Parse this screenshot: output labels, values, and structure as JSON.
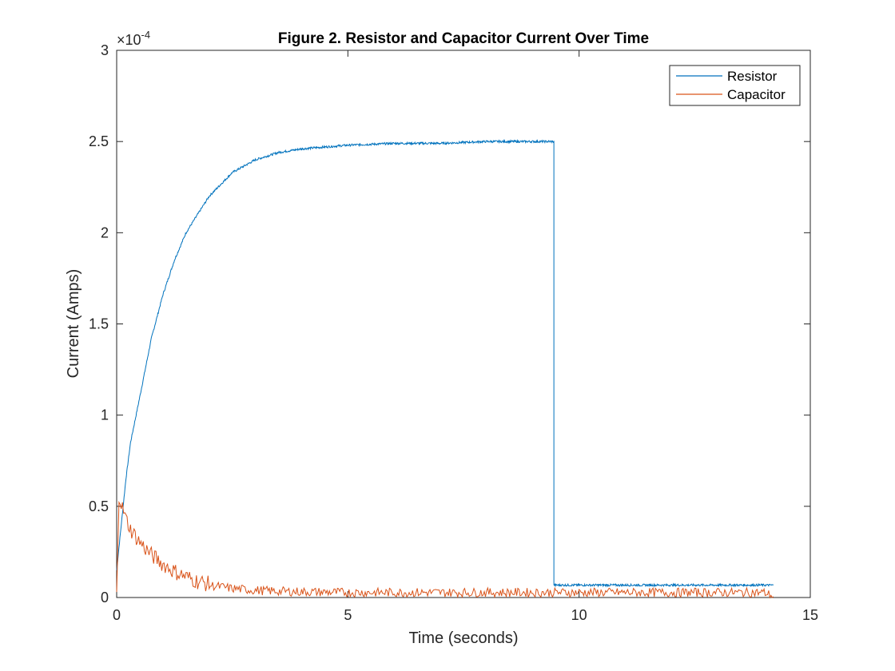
{
  "chart_data": {
    "type": "line",
    "title": "Figure 2. Resistor and Capacitor Current Over Time",
    "xlabel": "Time (seconds)",
    "ylabel": "Current (Amps)",
    "xlim": [
      0,
      15
    ],
    "ylim": [
      0,
      0.0003
    ],
    "x_ticks": [
      "0",
      "5",
      "10",
      "15"
    ],
    "y_ticks": [
      "0",
      "0.5",
      "1",
      "1.5",
      "2",
      "2.5",
      "3"
    ],
    "y_exponent_base": "×10",
    "y_exponent_power": "-4",
    "grid": false,
    "legend_position": "top-right",
    "series": [
      {
        "name": "Resistor",
        "color": "#0072BD",
        "x": [
          0,
          0.1,
          0.2,
          0.3,
          0.5,
          0.75,
          1.0,
          1.25,
          1.5,
          2.0,
          2.5,
          3.0,
          3.5,
          4.0,
          4.5,
          5.0,
          6.0,
          7.0,
          8.0,
          9.0,
          9.45,
          9.46,
          10.0,
          11.0,
          12.0,
          13.0,
          14.0,
          14.2
        ],
        "values": [
          1.5e-05,
          4e-05,
          6.5e-05,
          8.5e-05,
          0.00011,
          0.000142,
          0.000166,
          0.000185,
          0.0002,
          0.00022,
          0.000233,
          0.00024,
          0.000244,
          0.000246,
          0.000247,
          0.000248,
          0.000249,
          0.000249,
          0.00025,
          0.00025,
          0.00025,
          6.8e-06,
          6.8e-06,
          6.8e-06,
          6.8e-06,
          6.8e-06,
          6.8e-06,
          6.8e-06
        ]
      },
      {
        "name": "Capacitor",
        "color": "#D95319",
        "x": [
          0,
          0.05,
          0.1,
          0.2,
          0.3,
          0.5,
          0.75,
          1.0,
          1.25,
          1.5,
          1.75,
          2.0,
          2.5,
          3.0,
          3.5,
          4.0,
          4.5,
          5.0,
          6.0,
          7.0,
          8.0,
          9.0,
          10.0,
          11.0,
          12.0,
          13.0,
          14.0,
          14.2
        ],
        "values": [
          0.0,
          5.5e-05,
          5e-05,
          4.2e-05,
          3.6e-05,
          2.9e-05,
          2.2e-05,
          1.7e-05,
          1.3e-05,
          1e-05,
          7.5e-06,
          6e-06,
          4.2e-06,
          3.2e-06,
          2.7e-06,
          2.4e-06,
          2.2e-06,
          2e-06,
          2e-06,
          2e-06,
          2e-06,
          2e-06,
          2e-06,
          2e-06,
          2e-06,
          2e-06,
          2e-06,
          0.0
        ]
      }
    ]
  }
}
